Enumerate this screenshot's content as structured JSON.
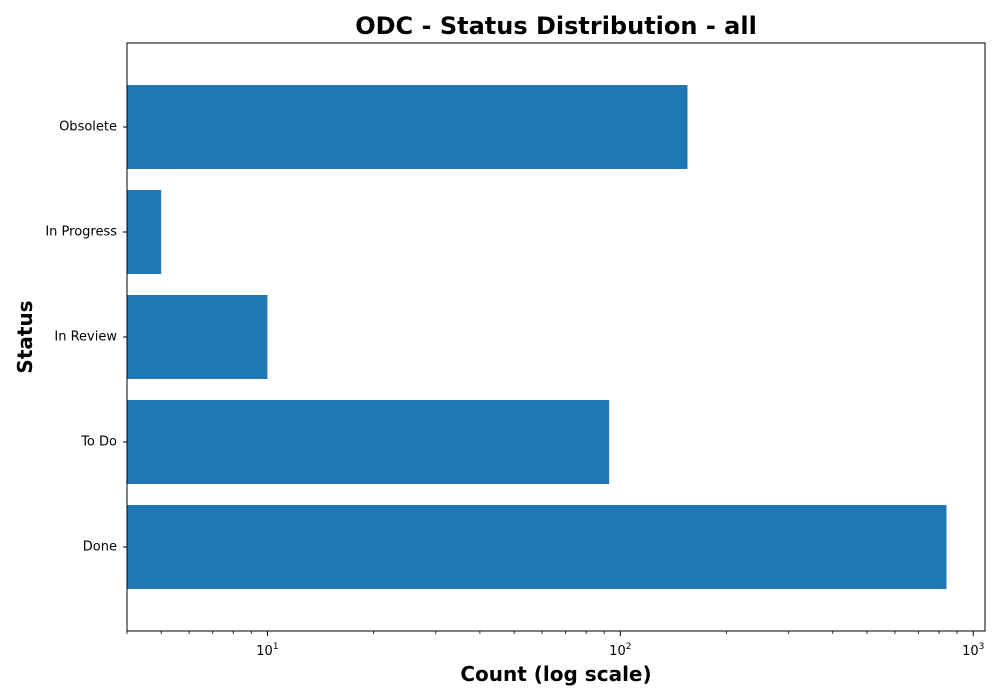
{
  "chart_data": {
    "type": "bar",
    "orientation": "horizontal",
    "title": "ODC - Status Distribution - all",
    "xlabel": "Count (log scale)",
    "ylabel": "Status",
    "x_scale": "log",
    "xlim": [
      4,
      1080
    ],
    "x_major_ticks": [
      10,
      100,
      1000
    ],
    "x_tick_labels": [
      {
        "base": "10",
        "exp": "1"
      },
      {
        "base": "10",
        "exp": "2"
      },
      {
        "base": "10",
        "exp": "3"
      }
    ],
    "categories": [
      "Done",
      "To Do",
      "In Review",
      "In Progress",
      "Obsolete"
    ],
    "values": [
      840,
      93,
      10,
      5,
      155
    ],
    "bar_color": "#1f77b4",
    "grid": false,
    "legend": "none"
  }
}
